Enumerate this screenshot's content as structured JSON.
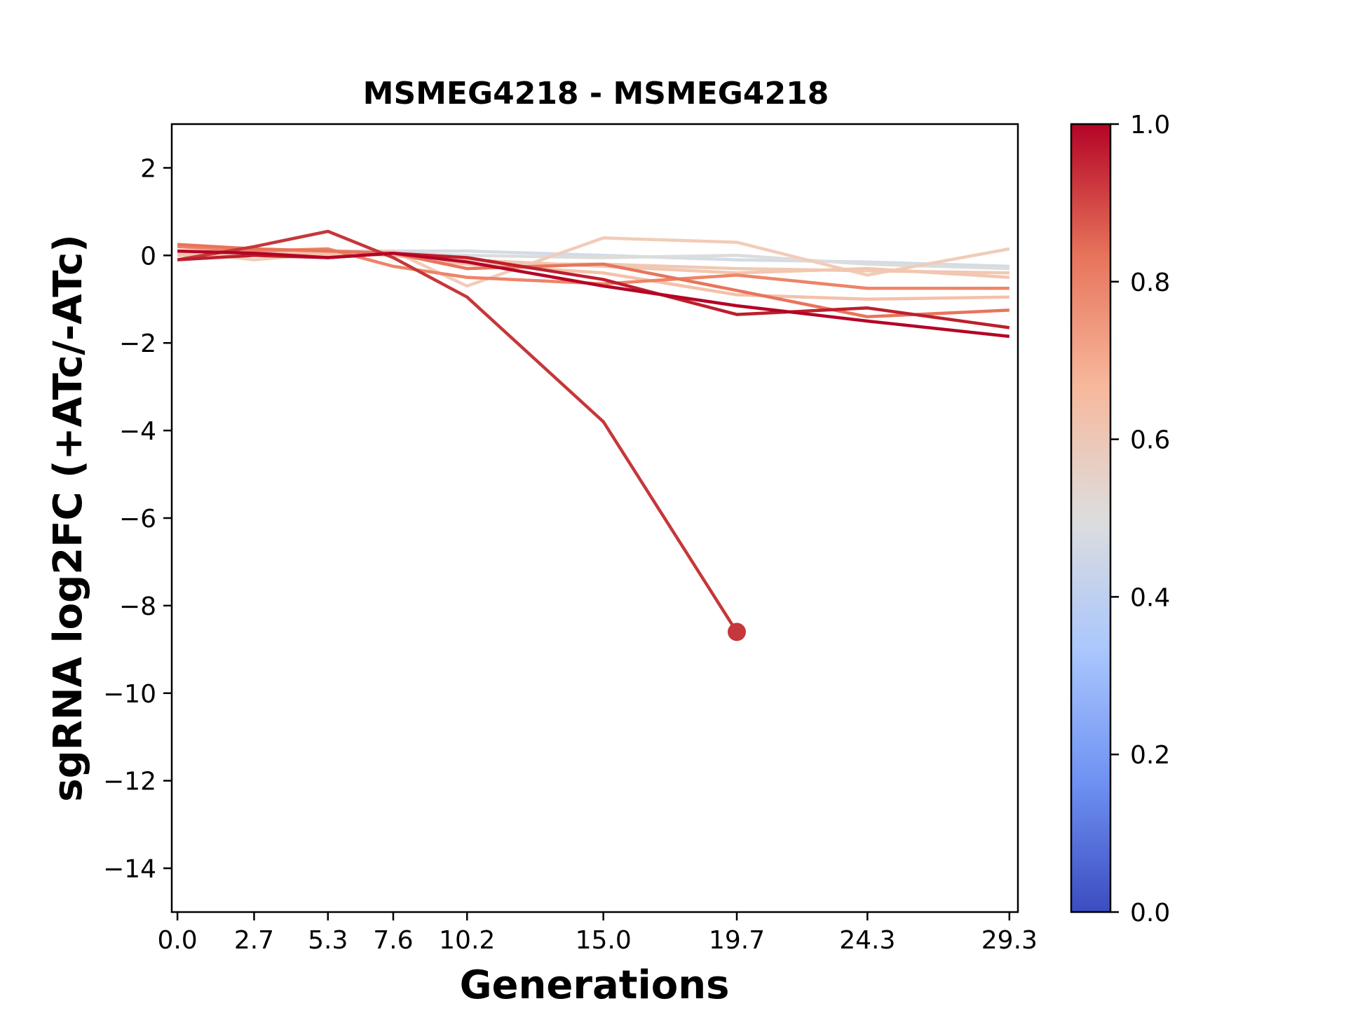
{
  "chart_data": {
    "type": "line",
    "title": "MSMEG4218 - MSMEG4218",
    "xlabel": "Generations",
    "ylabel": "sgRNA log2FC (+ATc/-ATc)",
    "xlim": [
      -0.2,
      29.6
    ],
    "ylim": [
      -15,
      3
    ],
    "x_ticks": [
      0.0,
      2.7,
      5.3,
      7.6,
      10.2,
      15.0,
      19.7,
      24.3,
      29.3
    ],
    "x_tick_labels": [
      "0.0",
      "2.7",
      "5.3",
      "7.6",
      "10.2",
      "15.0",
      "19.7",
      "24.3",
      "29.3"
    ],
    "y_ticks": [
      2,
      0,
      -2,
      -4,
      -6,
      -8,
      -10,
      -12,
      -14
    ],
    "y_tick_labels": [
      "2",
      "0",
      "−2",
      "−4",
      "−6",
      "−8",
      "−10",
      "−12",
      "−14"
    ],
    "grid": false,
    "colorbar": {
      "range": [
        0.0,
        1.0
      ],
      "ticks": [
        0.0,
        0.2,
        0.4,
        0.6,
        0.8,
        1.0
      ],
      "tick_labels": [
        "0.0",
        "0.2",
        "0.4",
        "0.6",
        "0.8",
        "1.0"
      ],
      "colormap": "coolwarm",
      "stops": [
        "#3b4cc0",
        "#6f92f3",
        "#aac7fd",
        "#dddddd",
        "#f7b89c",
        "#e7745b",
        "#b40426"
      ]
    },
    "x": [
      0.0,
      2.7,
      5.3,
      7.6,
      10.2,
      15.0,
      19.7,
      24.3,
      29.3
    ],
    "series": [
      {
        "score": 0.48,
        "color": "#d3dbe6",
        "values": [
          0.05,
          0.05,
          0.1,
          0.1,
          0.1,
          0.0,
          -0.1,
          -0.15,
          -0.25
        ]
      },
      {
        "score": 0.5,
        "color": "#dcdcdc",
        "values": [
          0.0,
          0.05,
          0.05,
          0.05,
          0.0,
          -0.05,
          0.0,
          -0.2,
          -0.3
        ]
      },
      {
        "score": 0.6,
        "color": "#f1ccb8",
        "values": [
          0.1,
          -0.1,
          0.05,
          0.1,
          -0.7,
          0.4,
          0.3,
          -0.45,
          0.15
        ]
      },
      {
        "score": 0.62,
        "color": "#efc9b4",
        "values": [
          0.0,
          0.05,
          0.0,
          0.05,
          -0.2,
          -0.2,
          -0.3,
          -0.35,
          -0.4
        ]
      },
      {
        "score": 0.64,
        "color": "#f2c6b0",
        "values": [
          0.05,
          0.0,
          0.1,
          0.05,
          -0.1,
          -0.25,
          -0.4,
          -0.3,
          -0.5
        ]
      },
      {
        "score": 0.66,
        "color": "#f4c1aa",
        "values": [
          0.1,
          0.05,
          0.05,
          0.0,
          -0.2,
          -0.4,
          -0.9,
          -1.0,
          -0.95
        ]
      },
      {
        "score": 0.74,
        "color": "#ee8468",
        "values": [
          0.2,
          0.1,
          0.15,
          -0.25,
          -0.5,
          -0.65,
          -0.45,
          -0.75,
          -0.75
        ]
      },
      {
        "score": 0.78,
        "color": "#e7755b",
        "values": [
          0.25,
          0.15,
          0.1,
          0.05,
          -0.3,
          -0.2,
          -0.8,
          -1.4,
          -1.25
        ]
      },
      {
        "score": 0.92,
        "color": "#c5373a",
        "values": [
          -0.1,
          0.2,
          0.55,
          -0.05,
          -0.95,
          -3.8,
          -8.6,
          null,
          null
        ]
      },
      {
        "score": 0.96,
        "color": "#bd1f2d",
        "values": [
          -0.1,
          0.0,
          -0.05,
          0.05,
          -0.05,
          -0.55,
          -1.35,
          -1.2,
          -1.65
        ]
      },
      {
        "score": 1.0,
        "color": "#b40426",
        "values": [
          0.1,
          0.05,
          -0.05,
          0.05,
          -0.15,
          -0.7,
          -1.15,
          -1.5,
          -1.85
        ]
      }
    ]
  }
}
